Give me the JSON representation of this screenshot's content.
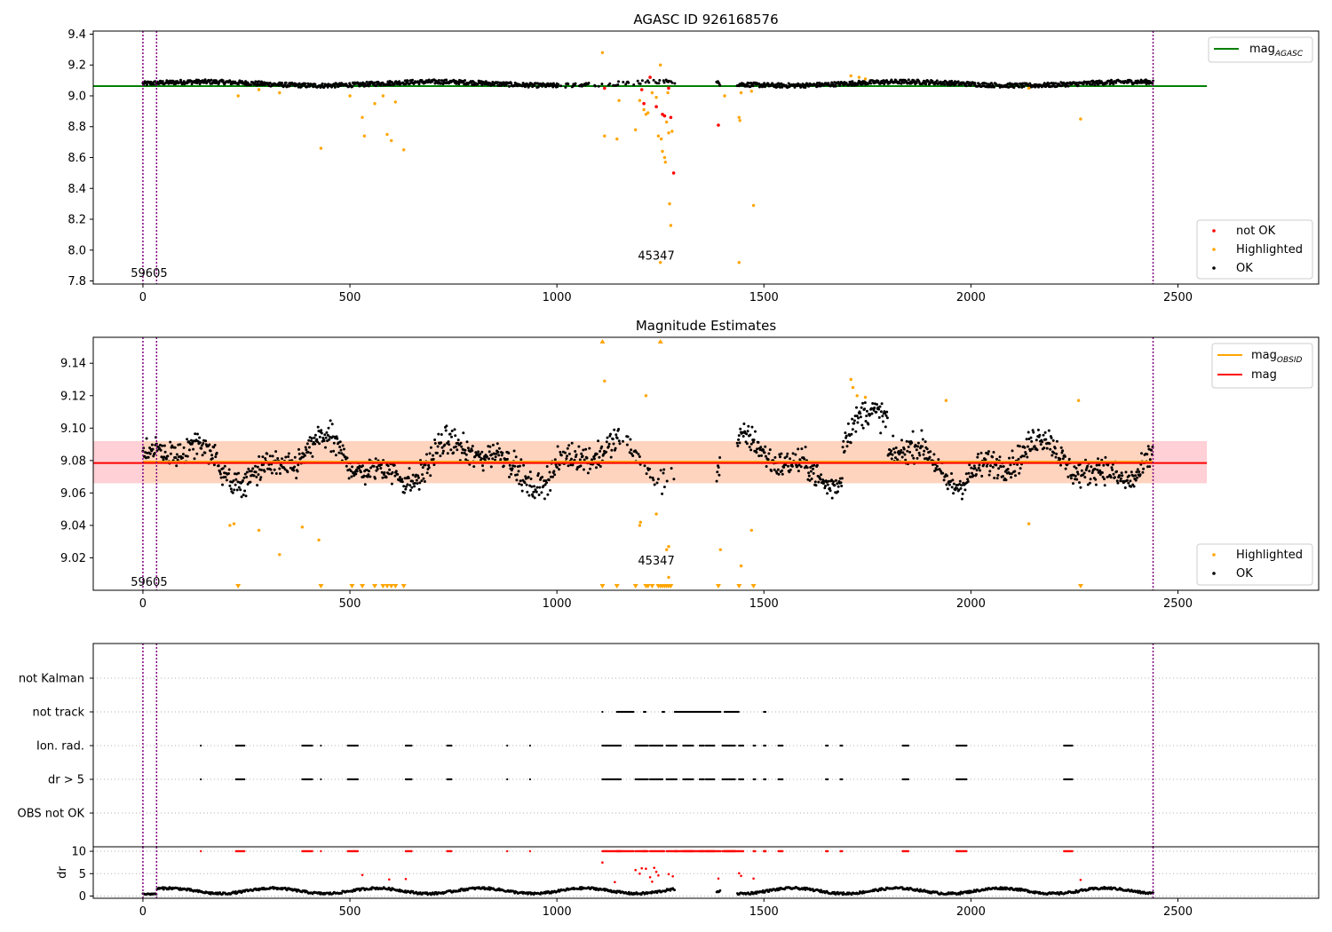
{
  "colors": {
    "ok": "#000000",
    "highlighted": "#ffa500",
    "not_ok": "#ff0000",
    "agasc_line": "#008000",
    "obsid_line": "#ffa500",
    "mag_line": "#ff0000",
    "vline": "#800080",
    "band_red": "#ffd0d5",
    "band_orange": "#ffd4bd"
  },
  "chart_data": [
    {
      "type": "scatter",
      "title": "AGASC ID 926168576",
      "xlabel": "",
      "ylabel": "",
      "xlim": [
        -120,
        2840
      ],
      "ylim": [
        7.78,
        9.42
      ],
      "xticks": [
        0,
        500,
        1000,
        1500,
        2000,
        2500
      ],
      "yticks": [
        7.8,
        8.0,
        8.2,
        8.4,
        8.6,
        8.8,
        9.0,
        9.2,
        9.4
      ],
      "xtick_labels": [
        "0",
        "500",
        "1000",
        "1500",
        "2000",
        "2500"
      ],
      "ytick_labels": [
        "7.8",
        "8.0",
        "8.2",
        "8.4",
        "8.6",
        "8.8",
        "9.0",
        "9.2",
        "9.4"
      ],
      "vlines": [
        0,
        33,
        2440
      ],
      "annotations": [
        {
          "text": "59605",
          "x": 15,
          "y": 7.85
        },
        {
          "text": "45347",
          "x": 1240,
          "y": 7.96
        }
      ],
      "hlines": [
        {
          "name": "mag_AGASC",
          "y": 9.063,
          "x_range": [
            -120,
            2570
          ]
        }
      ],
      "legend_lines": [
        {
          "label": "mag",
          "sub": "AGASC",
          "color": "#008000"
        }
      ],
      "legend_points": [
        {
          "label": "not OK",
          "color": "#ff0000"
        },
        {
          "label": "Highlighted",
          "color": "#ffa500"
        },
        {
          "label": "OK",
          "color": "#000000"
        }
      ],
      "legend_placement": [
        "top-right",
        "bottom-right"
      ],
      "ok_band": {
        "center": 9.079,
        "width": 0.028,
        "x_range": [
          0,
          2440
        ],
        "gaps": [
          [
            1285,
            1385
          ],
          [
            1395,
            1435
          ]
        ]
      },
      "highlighted": [
        [
          230,
          9.0
        ],
        [
          280,
          9.04
        ],
        [
          330,
          9.02
        ],
        [
          430,
          8.66
        ],
        [
          500,
          9.0
        ],
        [
          530,
          8.86
        ],
        [
          535,
          8.74
        ],
        [
          560,
          8.95
        ],
        [
          580,
          9.0
        ],
        [
          590,
          8.75
        ],
        [
          600,
          8.71
        ],
        [
          610,
          8.96
        ],
        [
          630,
          8.65
        ],
        [
          1110,
          9.28
        ],
        [
          1115,
          8.74
        ],
        [
          1145,
          8.72
        ],
        [
          1150,
          8.97
        ],
        [
          1190,
          8.78
        ],
        [
          1200,
          8.97
        ],
        [
          1210,
          8.91
        ],
        [
          1215,
          8.88
        ],
        [
          1220,
          8.89
        ],
        [
          1230,
          9.02
        ],
        [
          1240,
          8.99
        ],
        [
          1245,
          8.74
        ],
        [
          1250,
          9.2
        ],
        [
          1252,
          8.72
        ],
        [
          1255,
          8.64
        ],
        [
          1260,
          8.6
        ],
        [
          1262,
          8.57
        ],
        [
          1265,
          8.83
        ],
        [
          1268,
          9.02
        ],
        [
          1270,
          8.76
        ],
        [
          1272,
          8.3
        ],
        [
          1275,
          8.16
        ],
        [
          1278,
          8.77
        ],
        [
          1405,
          9.0
        ],
        [
          1440,
          8.86
        ],
        [
          1442,
          8.84
        ],
        [
          1445,
          9.02
        ],
        [
          1470,
          9.03
        ],
        [
          1475,
          8.29
        ],
        [
          1440,
          7.92
        ],
        [
          1250,
          7.92
        ],
        [
          2140,
          9.05
        ],
        [
          2265,
          8.85
        ],
        [
          1710,
          9.13
        ],
        [
          1730,
          9.12
        ],
        [
          1745,
          9.11
        ]
      ],
      "not_ok": [
        [
          1115,
          9.05
        ],
        [
          1205,
          9.04
        ],
        [
          1210,
          8.95
        ],
        [
          1225,
          9.12
        ],
        [
          1240,
          8.93
        ],
        [
          1255,
          8.88
        ],
        [
          1260,
          8.87
        ],
        [
          1270,
          9.05
        ],
        [
          1275,
          8.86
        ],
        [
          1282,
          8.5
        ],
        [
          1390,
          8.81
        ]
      ]
    },
    {
      "type": "scatter",
      "title": "Magnitude Estimates",
      "xlabel": "",
      "ylabel": "",
      "xlim": [
        -120,
        2840
      ],
      "ylim": [
        9.0,
        9.156
      ],
      "xticks": [
        0,
        500,
        1000,
        1500,
        2000,
        2500
      ],
      "yticks": [
        9.02,
        9.04,
        9.06,
        9.08,
        9.1,
        9.12,
        9.14
      ],
      "xtick_labels": [
        "0",
        "500",
        "1000",
        "1500",
        "2000",
        "2500"
      ],
      "ytick_labels": [
        "9.02",
        "9.04",
        "9.06",
        "9.08",
        "9.10",
        "9.12",
        "9.14"
      ],
      "vlines": [
        0,
        33,
        2440
      ],
      "annotations": [
        {
          "text": "59605",
          "x": 15,
          "y": 9.005
        },
        {
          "text": "45347",
          "x": 1240,
          "y": 9.018
        }
      ],
      "mag": 9.0785,
      "mag_band": [
        9.066,
        9.092
      ],
      "obsid_band": [
        9.066,
        9.092
      ],
      "legend_lines": [
        {
          "label": "mag",
          "sub": "OBSID",
          "color": "#ffa500"
        },
        {
          "label": "mag",
          "sub": "",
          "color": "#ff0000"
        }
      ],
      "legend_points": [
        {
          "label": "Highlighted",
          "color": "#ffa500"
        },
        {
          "label": "OK",
          "color": "#000000"
        }
      ],
      "legend_placement": [
        "top-right",
        "bottom-right"
      ],
      "highlighted": [
        [
          210,
          9.04
        ],
        [
          220,
          9.041
        ],
        [
          280,
          9.037
        ],
        [
          330,
          9.022
        ],
        [
          385,
          9.039
        ],
        [
          425,
          9.031
        ],
        [
          1115,
          9.129
        ],
        [
          1215,
          9.12
        ],
        [
          1200,
          9.04
        ],
        [
          1202,
          9.042
        ],
        [
          1240,
          9.047
        ],
        [
          1265,
          9.025
        ],
        [
          1270,
          9.027
        ],
        [
          1395,
          9.025
        ],
        [
          1445,
          9.015
        ],
        [
          1470,
          9.037
        ],
        [
          1710,
          9.13
        ],
        [
          1715,
          9.125
        ],
        [
          1725,
          9.12
        ],
        [
          1745,
          9.119
        ],
        [
          1940,
          9.117
        ],
        [
          2140,
          9.041
        ],
        [
          2260,
          9.117
        ],
        [
          1270,
          9.008
        ]
      ],
      "up_markers": [
        1110,
        1250
      ],
      "down_markers": [
        230,
        430,
        505,
        530,
        560,
        580,
        590,
        600,
        610,
        630,
        1110,
        1145,
        1190,
        1215,
        1220,
        1230,
        1245,
        1250,
        1255,
        1260,
        1265,
        1270,
        1275,
        1390,
        1440,
        1475,
        2265
      ]
    },
    {
      "type": "scatter",
      "title": "",
      "xlabel": "",
      "ylabel": "",
      "xlim": [
        -120,
        2840
      ],
      "categories": [
        "OBS not OK",
        "dr > 5",
        "Ion. rad.",
        "not track",
        "not Kalman"
      ],
      "vlines": [
        0,
        33,
        2440
      ],
      "flag_events": [
        [
          140,
          140
        ],
        [
          225,
          245
        ],
        [
          385,
          410
        ],
        [
          430,
          430
        ],
        [
          495,
          520
        ],
        [
          635,
          650
        ],
        [
          735,
          745
        ],
        [
          880,
          880
        ],
        [
          935,
          935
        ],
        [
          1110,
          1155
        ],
        [
          1190,
          1220
        ],
        [
          1225,
          1255
        ],
        [
          1265,
          1290
        ],
        [
          1305,
          1330
        ],
        [
          1345,
          1355
        ],
        [
          1360,
          1380
        ],
        [
          1400,
          1430
        ],
        [
          1440,
          1450
        ],
        [
          1475,
          1480
        ],
        [
          1500,
          1505
        ],
        [
          1535,
          1545
        ],
        [
          1650,
          1655
        ],
        [
          1685,
          1690
        ],
        [
          1835,
          1850
        ],
        [
          1965,
          1990
        ],
        [
          2225,
          2245
        ]
      ],
      "not_track": [
        [
          1145,
          1185
        ],
        [
          1210,
          1215
        ],
        [
          1255,
          1260
        ],
        [
          1285,
          1395
        ],
        [
          1405,
          1440
        ],
        [
          1500,
          1505
        ]
      ],
      "not_track_single": [
        1110
      ]
    },
    {
      "type": "scatter",
      "title": "",
      "xlabel": "",
      "ylabel": "dr",
      "xlim": [
        -120,
        2840
      ],
      "ylim": [
        -0.5,
        11
      ],
      "yticks": [
        0,
        5,
        10
      ],
      "ytick_labels": [
        "0",
        "5",
        "10"
      ],
      "xticks": [
        0,
        500,
        1000,
        1500,
        2000,
        2500
      ],
      "xtick_labels": [
        "0",
        "500",
        "1000",
        "1500",
        "2000",
        "2500"
      ],
      "vlines": [
        0,
        33,
        2440
      ],
      "red_high": [
        [
          1110,
          7.5
        ],
        [
          1190,
          5.8
        ],
        [
          1200,
          5
        ],
        [
          1205,
          6.2
        ],
        [
          1215,
          6.1
        ],
        [
          1225,
          4.2
        ],
        [
          1235,
          6.3
        ],
        [
          1240,
          5.4
        ],
        [
          1245,
          4.6
        ],
        [
          1270,
          4.9
        ],
        [
          1280,
          4.4
        ],
        [
          1390,
          3.9
        ],
        [
          1440,
          5.1
        ],
        [
          1445,
          4.5
        ],
        [
          1475,
          3.9
        ],
        [
          530,
          4.7
        ],
        [
          595,
          3.7
        ],
        [
          635,
          3.8
        ],
        [
          2265,
          3.6
        ],
        [
          1140,
          3.1
        ],
        [
          1230,
          3.2
        ]
      ]
    }
  ]
}
